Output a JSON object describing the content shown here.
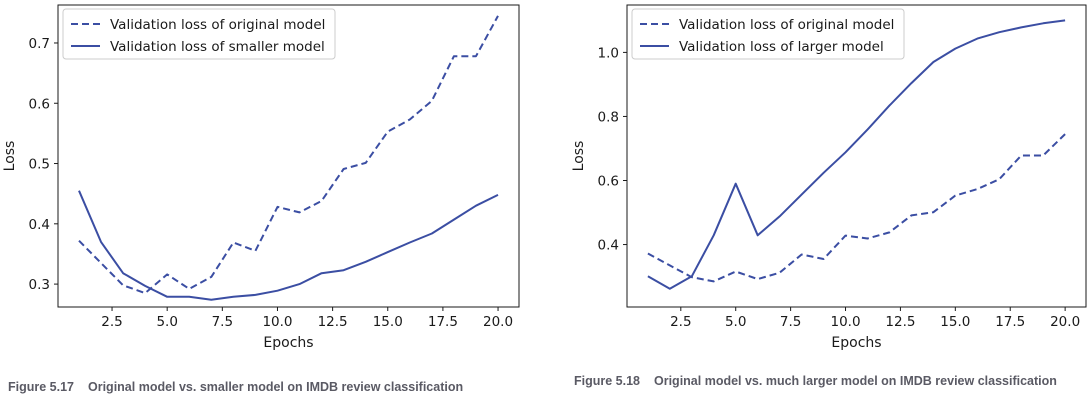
{
  "chart_data": [
    {
      "type": "line",
      "xlabel": "Epochs",
      "ylabel": "Loss",
      "xlim": [
        0.05,
        20.95
      ],
      "ylim": [
        0.262,
        0.763
      ],
      "xticks": [
        2.5,
        5.0,
        7.5,
        10.0,
        12.5,
        15.0,
        17.5,
        20.0
      ],
      "xtick_labels": [
        "2.5",
        "5.0",
        "7.5",
        "10.0",
        "12.5",
        "15.0",
        "17.5",
        "20.0"
      ],
      "yticks": [
        0.3,
        0.4,
        0.5,
        0.6,
        0.7
      ],
      "ytick_labels": [
        "0.3",
        "0.4",
        "0.5",
        "0.6",
        "0.7"
      ],
      "legend_position": "top-left",
      "x": [
        1,
        2,
        3,
        4,
        5,
        6,
        7,
        8,
        9,
        10,
        11,
        12,
        13,
        14,
        15,
        16,
        17,
        18,
        19,
        20
      ],
      "series": [
        {
          "name": "Validation loss of original model",
          "style": "dashed",
          "values": [
            0.372,
            0.335,
            0.298,
            0.285,
            0.316,
            0.292,
            0.312,
            0.369,
            0.355,
            0.428,
            0.419,
            0.438,
            0.491,
            0.501,
            0.553,
            0.573,
            0.604,
            0.678,
            0.678,
            0.745
          ]
        },
        {
          "name": "Validation loss of smaller model",
          "style": "solid",
          "values": [
            0.455,
            0.37,
            0.318,
            0.297,
            0.279,
            0.279,
            0.274,
            0.279,
            0.282,
            0.289,
            0.3,
            0.318,
            0.323,
            0.337,
            0.353,
            0.369,
            0.384,
            0.407,
            0.43,
            0.448
          ]
        }
      ]
    },
    {
      "type": "line",
      "xlabel": "Epochs",
      "ylabel": "Loss",
      "xlim": [
        0.05,
        20.95
      ],
      "ylim": [
        0.205,
        1.148
      ],
      "xticks": [
        2.5,
        5.0,
        7.5,
        10.0,
        12.5,
        15.0,
        17.5,
        20.0
      ],
      "xtick_labels": [
        "2.5",
        "5.0",
        "7.5",
        "10.0",
        "12.5",
        "15.0",
        "17.5",
        "20.0"
      ],
      "yticks": [
        0.4,
        0.6,
        0.8,
        1.0
      ],
      "ytick_labels": [
        "0.4",
        "0.6",
        "0.8",
        "1.0"
      ],
      "legend_position": "top-left",
      "x": [
        1,
        2,
        3,
        4,
        5,
        6,
        7,
        8,
        9,
        10,
        11,
        12,
        13,
        14,
        15,
        16,
        17,
        18,
        19,
        20
      ],
      "series": [
        {
          "name": "Validation loss of original model",
          "style": "dashed",
          "values": [
            0.372,
            0.335,
            0.298,
            0.285,
            0.316,
            0.292,
            0.312,
            0.369,
            0.355,
            0.428,
            0.419,
            0.438,
            0.491,
            0.501,
            0.553,
            0.573,
            0.604,
            0.678,
            0.678,
            0.745
          ]
        },
        {
          "name": "Validation loss of larger model",
          "style": "solid",
          "values": [
            0.301,
            0.262,
            0.301,
            0.429,
            0.59,
            0.429,
            0.488,
            0.556,
            0.624,
            0.688,
            0.759,
            0.834,
            0.904,
            0.97,
            1.012,
            1.043,
            1.063,
            1.078,
            1.091,
            1.1
          ]
        }
      ]
    }
  ],
  "colors": {
    "line": "#3b4ea3",
    "axis": "#1a1a1a",
    "caption": "#5a5a64"
  },
  "captions": [
    {
      "number": "Figure 5.17",
      "text": "Original model vs. smaller model on IMDB review classification"
    },
    {
      "number": "Figure 5.18",
      "text": "Original model vs. much larger model on IMDB review classification"
    }
  ]
}
